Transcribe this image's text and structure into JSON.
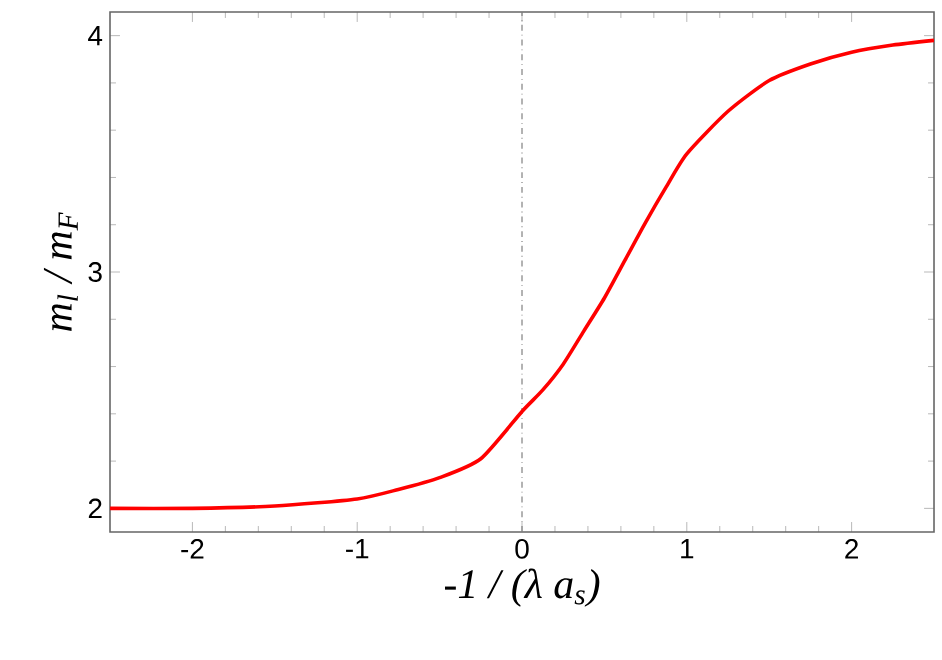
{
  "chart_data": {
    "type": "line",
    "xlabel": "-1 / (λ a$_{s}$)",
    "ylabel": "m$_{l}$ / m$_{F}$",
    "x": [
      -2.5,
      -2,
      -1.5,
      -1,
      -0.75,
      -0.5,
      -0.25,
      0,
      0.125,
      0.25,
      0.375,
      0.5,
      0.625,
      0.75,
      0.875,
      1,
      1.25,
      1.5,
      1.75,
      2,
      2.25,
      2.5
    ],
    "series": [
      {
        "color": "#ff0000",
        "values": [
          2.0,
          2.0,
          2.01,
          2.04,
          2.08,
          2.13,
          2.21,
          2.41,
          2.5,
          2.61,
          2.75,
          2.89,
          3.05,
          3.21,
          3.36,
          3.5,
          3.68,
          3.81,
          3.88,
          3.93,
          3.96,
          3.98
        ]
      }
    ],
    "xlim": [
      -2.5,
      2.5
    ],
    "ylim": [
      1.9,
      4.1
    ],
    "xticks": [
      -2,
      -1,
      0,
      1,
      2
    ],
    "yticks": [
      2,
      3,
      4
    ],
    "ref_lines": [
      {
        "axis": "x",
        "value": 0,
        "color": "#808080",
        "line_style": "dashed"
      }
    ],
    "grid": false,
    "marker": "none",
    "line_style": "solid"
  }
}
